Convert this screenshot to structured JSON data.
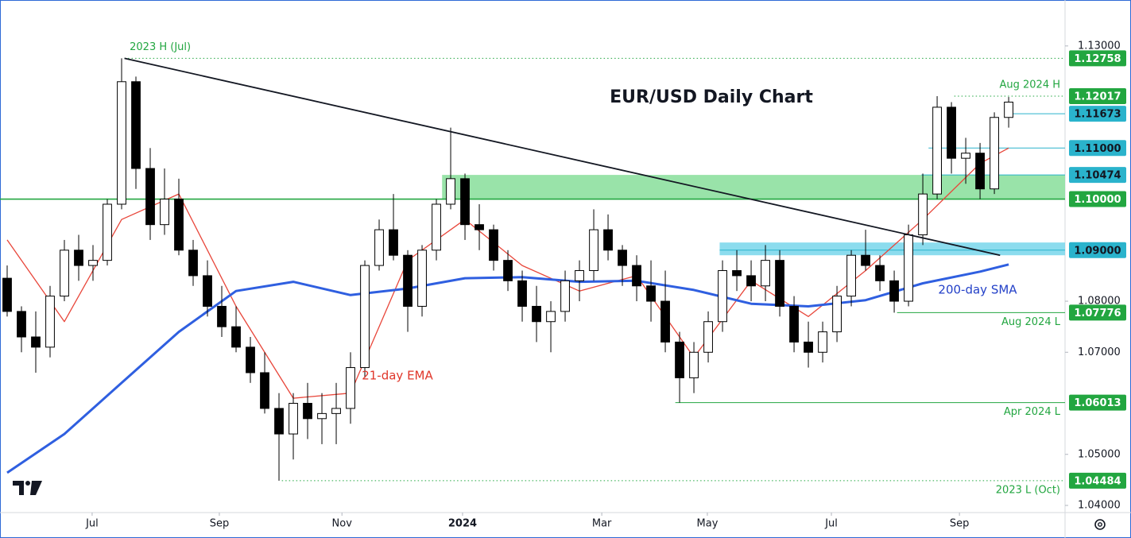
{
  "chart_data": {
    "type": "candlestick",
    "title": "EUR/USD Daily Chart",
    "xlim": [
      -0.5,
      73.94
    ],
    "xticks": [
      {
        "value": 5.94,
        "label": "Jul"
      },
      {
        "value": 14.83,
        "label": "Sep"
      },
      {
        "value": 23.4,
        "label": "Nov"
      },
      {
        "value": 31.83,
        "label": "2024"
      },
      {
        "value": 41.56,
        "label": "Mar"
      },
      {
        "value": 48.94,
        "label": "May"
      },
      {
        "value": 57.61,
        "label": "Jul"
      },
      {
        "value": 66.56,
        "label": "Sep"
      }
    ],
    "ylim": [
      1.0386,
      1.139
    ],
    "yticks": [
      {
        "value": 1.13,
        "label": "1.13000"
      },
      {
        "value": 1.08,
        "label": "1.08000"
      },
      {
        "value": 1.07,
        "label": "1.07000"
      },
      {
        "value": 1.05,
        "label": "1.05000"
      },
      {
        "value": 1.04,
        "label": "1.04000"
      }
    ],
    "up_color": "#ffffff",
    "down_color": "#000000",
    "open": [
      1.0845,
      1.078,
      1.073,
      1.071,
      1.081,
      1.09,
      1.087,
      1.088,
      1.099,
      1.123,
      1.106,
      1.095,
      1.1,
      1.09,
      1.085,
      1.079,
      1.075,
      1.071,
      1.066,
      1.059,
      1.054,
      1.06,
      1.057,
      1.058,
      1.059,
      1.067,
      1.087,
      1.094,
      1.089,
      1.079,
      1.09,
      1.099,
      1.104,
      1.095,
      1.094,
      1.088,
      1.084,
      1.079,
      1.076,
      1.078,
      1.084,
      1.086,
      1.094,
      1.09,
      1.087,
      1.083,
      1.08,
      1.072,
      1.065,
      1.07,
      1.076,
      1.086,
      1.085,
      1.083,
      1.088,
      1.079,
      1.072,
      1.07,
      1.074,
      1.081,
      1.089,
      1.087,
      1.084,
      1.08,
      1.093,
      1.101,
      1.118,
      1.108,
      1.109,
      1.102,
      1.116
    ],
    "high": [
      1.087,
      1.079,
      1.078,
      1.083,
      1.092,
      1.093,
      1.091,
      1.1,
      1.12758,
      1.124,
      1.11,
      1.106,
      1.104,
      1.092,
      1.088,
      1.083,
      1.079,
      1.073,
      1.07,
      1.062,
      1.062,
      1.064,
      1.062,
      1.064,
      1.07,
      1.088,
      1.096,
      1.101,
      1.09,
      1.091,
      1.1,
      1.114,
      1.105,
      1.099,
      1.095,
      1.09,
      1.086,
      1.083,
      1.08,
      1.086,
      1.088,
      1.098,
      1.097,
      1.091,
      1.089,
      1.088,
      1.086,
      1.074,
      1.072,
      1.078,
      1.088,
      1.09,
      1.088,
      1.091,
      1.09,
      1.081,
      1.076,
      1.076,
      1.083,
      1.09,
      1.094,
      1.089,
      1.086,
      1.095,
      1.105,
      1.12017,
      1.119,
      1.112,
      1.111,
      1.117,
      1.12
    ],
    "low": [
      1.077,
      1.07,
      1.066,
      1.069,
      1.08,
      1.084,
      1.084,
      1.087,
      1.098,
      1.102,
      1.092,
      1.093,
      1.089,
      1.083,
      1.077,
      1.073,
      1.07,
      1.064,
      1.058,
      1.04484,
      1.049,
      1.053,
      1.052,
      1.052,
      1.056,
      1.065,
      1.086,
      1.088,
      1.074,
      1.077,
      1.088,
      1.098,
      1.092,
      1.09,
      1.086,
      1.082,
      1.076,
      1.072,
      1.07,
      1.076,
      1.08,
      1.084,
      1.088,
      1.083,
      1.08,
      1.076,
      1.07,
      1.06013,
      1.062,
      1.068,
      1.074,
      1.082,
      1.08,
      1.08,
      1.077,
      1.07,
      1.067,
      1.068,
      1.072,
      1.079,
      1.086,
      1.082,
      1.07776,
      1.079,
      1.091,
      1.1,
      1.105,
      1.103,
      1.1,
      1.101,
      1.114
    ],
    "close": [
      1.078,
      1.073,
      1.071,
      1.081,
      1.09,
      1.087,
      1.088,
      1.099,
      1.123,
      1.106,
      1.095,
      1.1,
      1.09,
      1.085,
      1.079,
      1.075,
      1.071,
      1.066,
      1.059,
      1.054,
      1.06,
      1.057,
      1.058,
      1.059,
      1.067,
      1.087,
      1.094,
      1.089,
      1.079,
      1.09,
      1.099,
      1.104,
      1.095,
      1.094,
      1.088,
      1.084,
      1.079,
      1.076,
      1.078,
      1.084,
      1.086,
      1.094,
      1.09,
      1.087,
      1.083,
      1.08,
      1.072,
      1.065,
      1.07,
      1.076,
      1.086,
      1.085,
      1.083,
      1.088,
      1.079,
      1.072,
      1.07,
      1.074,
      1.081,
      1.089,
      1.087,
      1.084,
      1.08,
      1.093,
      1.101,
      1.118,
      1.108,
      1.109,
      1.102,
      1.116,
      1.119
    ],
    "indicators": [
      {
        "name": "21-day EMA",
        "color": "#e8463a",
        "width": 1.3,
        "x": [
          0,
          4,
          8,
          12,
          16,
          20,
          24,
          28,
          32,
          36,
          40,
          44,
          48,
          52,
          56,
          60,
          64,
          68,
          70
        ],
        "values": [
          1.092,
          1.076,
          1.096,
          1.101,
          1.079,
          1.061,
          1.062,
          1.088,
          1.096,
          1.087,
          1.082,
          1.085,
          1.069,
          1.084,
          1.077,
          1.086,
          1.096,
          1.107,
          1.11
        ]
      },
      {
        "name": "200-day SMA",
        "color": "#2f5fe0",
        "width": 3,
        "x": [
          0,
          4,
          8,
          12,
          16,
          20,
          24,
          28,
          32,
          36,
          40,
          44,
          48,
          52,
          56,
          60,
          64,
          68,
          70
        ],
        "values": [
          1.0464,
          1.054,
          1.064,
          1.074,
          1.082,
          1.0838,
          1.0812,
          1.0825,
          1.0845,
          1.0847,
          1.0838,
          1.084,
          1.0822,
          1.0795,
          1.079,
          1.0802,
          1.0835,
          1.0858,
          1.0872
        ]
      }
    ],
    "trendline": {
      "x": [
        8.2,
        69.4
      ],
      "y": [
        1.12758,
        1.089
      ]
    },
    "zones": [
      {
        "from": 30.4,
        "low": 1.1,
        "high": 1.10474,
        "color": "#8ee0a0"
      },
      {
        "from": 49.8,
        "low": 1.089,
        "high": 1.0915,
        "color": "#7fd8ec"
      }
    ],
    "levels": [
      {
        "value": 1.12758,
        "label": "1.12758",
        "from": 8.2,
        "color": "#22a640",
        "style": "dotted",
        "note": "2023 H (Jul)"
      },
      {
        "value": 1.12017,
        "label": "1.12017",
        "from": 66.2,
        "color": "#22a640",
        "style": "dotted",
        "note": "Aug 2024 H"
      },
      {
        "value": 1.11673,
        "label": "1.11673",
        "from": 69.9,
        "color": "#2ab3cc",
        "style": "solid"
      },
      {
        "value": 1.11,
        "label": "1.11000",
        "from": 64.4,
        "color": "#2ab3cc",
        "style": "solid"
      },
      {
        "value": 1.10474,
        "label": "1.10474",
        "from": 63.9,
        "color": "#2ab3cc",
        "style": "solid"
      },
      {
        "value": 1.1,
        "label": "1.10000",
        "from": -0.5,
        "color": "#22a640",
        "style": "solid"
      },
      {
        "value": 1.09,
        "label": "1.09000",
        "from": 49.8,
        "color": "#2ab3cc",
        "style": "solid"
      },
      {
        "value": 1.07776,
        "label": "1.07776",
        "from": 62.2,
        "color": "#22a640",
        "style": "solid",
        "note": "Aug 2024 L"
      },
      {
        "value": 1.06013,
        "label": "1.06013",
        "from": 46.7,
        "color": "#22a640",
        "style": "solid",
        "note": "Apr 2024 L"
      },
      {
        "value": 1.04484,
        "label": "1.04484",
        "from": 19.2,
        "color": "#22a640",
        "style": "dotted",
        "note": "2023 L (Oct)"
      }
    ]
  }
}
